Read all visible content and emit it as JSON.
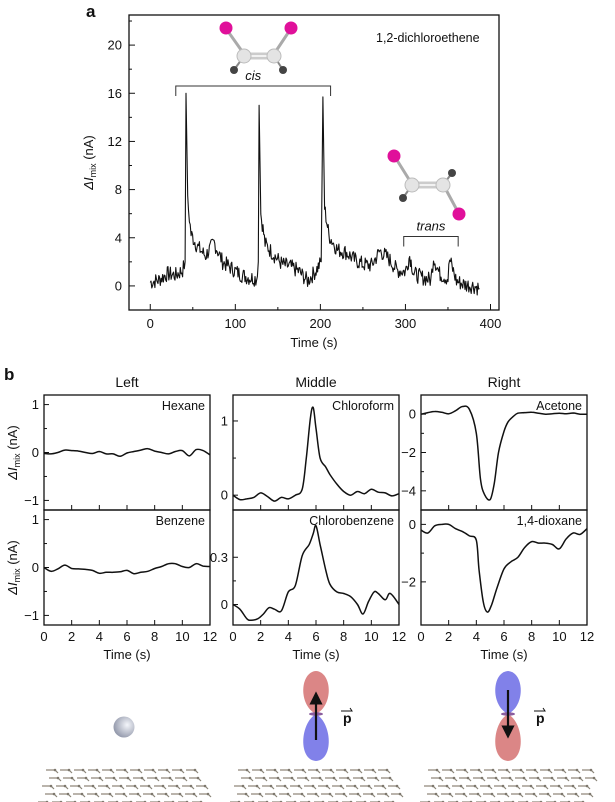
{
  "figure": {
    "panel_a_label": "a",
    "panel_b_label": "b"
  },
  "chart_data": [
    {
      "id": "panel-a",
      "type": "line",
      "title": "",
      "annotation": "1,2-dichloroethene",
      "xlabel": "Time (s)",
      "ylabel_prefix": "ΔI",
      "ylabel_sub": "mix",
      "ylabel_unit": " (nA)",
      "xlim": [
        -25,
        410
      ],
      "ylim": [
        -2,
        22.5
      ],
      "xticks": [
        0,
        100,
        200,
        300,
        400
      ],
      "xtick_labels": [
        "0",
        "100",
        "200",
        "300",
        "400"
      ],
      "yticks": [
        0,
        4,
        8,
        12,
        16,
        20
      ],
      "ytick_labels": [
        "0",
        "4",
        "8",
        "12",
        "16",
        "20"
      ],
      "grid": false,
      "brackets": [
        {
          "label": "cis",
          "x_start": 30,
          "x_end": 212,
          "y": 16.6
        },
        {
          "label": "trans",
          "x_start": 298,
          "x_end": 362,
          "y": 4.1
        }
      ],
      "molecule_labels": [
        "cis-1,2-dichloroethene",
        "trans-1,2-dichloroethene"
      ],
      "spikes": [
        {
          "x": 42,
          "peak": 16.0
        },
        {
          "x": 128,
          "peak": 15.0
        },
        {
          "x": 203,
          "peak": 15.7
        }
      ],
      "series": [
        {
          "name": "ΔImix",
          "x": [
            0,
            10,
            20,
            30,
            38,
            41,
            42,
            44,
            48,
            55,
            65,
            75,
            85,
            95,
            105,
            115,
            125,
            127,
            128,
            130,
            135,
            145,
            155,
            165,
            175,
            185,
            195,
            201,
            203,
            205,
            210,
            220,
            230,
            240,
            250,
            260,
            270,
            280,
            290,
            300,
            305,
            310,
            320,
            330,
            333,
            340,
            350,
            352,
            360,
            370,
            380,
            387
          ],
          "y": [
            0.3,
            0.5,
            1.0,
            0.9,
            1.3,
            2.0,
            16.0,
            7.0,
            4.3,
            3.3,
            2.5,
            3.6,
            2.0,
            1.5,
            1.0,
            0.7,
            0.6,
            2.0,
            15.0,
            6.0,
            3.5,
            2.6,
            1.8,
            1.6,
            1.2,
            0.4,
            1.3,
            2.0,
            15.7,
            6.5,
            4.2,
            3.0,
            2.8,
            2.2,
            1.8,
            1.7,
            2.9,
            2.3,
            1.3,
            1.2,
            2.5,
            1.0,
            0.7,
            0.5,
            2.4,
            1.0,
            0.6,
            2.2,
            0.4,
            0.1,
            0.0,
            -0.2
          ]
        }
      ]
    },
    {
      "id": "panel-b",
      "type": "line",
      "columns": [
        "Left",
        "Middle",
        "Right"
      ],
      "xlabel": "Time (s)",
      "ylabel_prefix": "ΔI",
      "ylabel_sub": "mix",
      "ylabel_unit": " (nA)",
      "xlim": [
        0,
        12
      ],
      "xticks": [
        0,
        2,
        4,
        6,
        8,
        10,
        12
      ],
      "xtick_labels": [
        "0",
        "2",
        "4",
        "6",
        "8",
        "10",
        "12"
      ],
      "grid": false,
      "subplots": [
        {
          "name": "Hexane",
          "row": 0,
          "col": 0,
          "ylim": [
            -1.2,
            1.2
          ],
          "yticks": [
            -1,
            0,
            1
          ],
          "ytick_labels": [
            "−1",
            "0",
            "1"
          ],
          "x": [
            0,
            0.5,
            1,
            1.5,
            2,
            2.5,
            3,
            3.5,
            4,
            4.5,
            5,
            5.5,
            6,
            6.5,
            7,
            7.5,
            8,
            8.5,
            9,
            9.5,
            10,
            10.5,
            11,
            11.5,
            12
          ],
          "y": [
            -0.02,
            -0.03,
            0.0,
            0.05,
            0.04,
            0.03,
            0.0,
            -0.02,
            0.02,
            -0.03,
            -0.03,
            -0.08,
            -0.01,
            0.02,
            0.05,
            0.08,
            0.03,
            0.0,
            -0.03,
            0.02,
            0.04,
            -0.07,
            0.06,
            0.04,
            -0.05
          ]
        },
        {
          "name": "Benzene",
          "row": 1,
          "col": 0,
          "ylim": [
            -1.2,
            1.2
          ],
          "yticks": [
            -1,
            0,
            1
          ],
          "ytick_labels": [
            "−1",
            "0",
            "1"
          ],
          "x": [
            0,
            0.5,
            1,
            1.5,
            2,
            2.5,
            3,
            3.5,
            4,
            4.5,
            5,
            5.5,
            6,
            6.5,
            7,
            7.5,
            8,
            8.5,
            9,
            9.5,
            10,
            10.5,
            11,
            11.5,
            12
          ],
          "y": [
            0.0,
            -0.08,
            -0.03,
            0.05,
            -0.02,
            -0.03,
            -0.04,
            -0.06,
            -0.12,
            -0.1,
            -0.1,
            -0.09,
            -0.06,
            -0.13,
            -0.1,
            -0.08,
            -0.02,
            0.02,
            0.08,
            0.08,
            0.02,
            0.0,
            0.08,
            0.03,
            0.02
          ]
        },
        {
          "name": "Chloroform",
          "row": 0,
          "col": 1,
          "ylim": [
            -0.2,
            1.35
          ],
          "yticks": [
            0,
            1
          ],
          "ytick_labels": [
            "0",
            "1"
          ],
          "x": [
            0,
            0.5,
            1,
            1.5,
            2,
            2.5,
            3,
            3.5,
            4,
            4.5,
            5,
            5.3,
            5.6,
            5.8,
            6,
            6.3,
            6.7,
            7,
            7.5,
            8,
            8.5,
            9,
            9.5,
            10,
            10.5,
            11,
            11.5,
            12
          ],
          "y": [
            0.0,
            -0.06,
            -0.05,
            -0.03,
            0.03,
            -0.02,
            -0.08,
            -0.03,
            -0.05,
            0.0,
            0.08,
            0.5,
            1.05,
            1.18,
            0.9,
            0.5,
            0.38,
            0.28,
            0.15,
            0.05,
            0.0,
            0.05,
            0.02,
            0.08,
            0.04,
            0.03,
            -0.01,
            0.02
          ]
        },
        {
          "name": "Chlorobenzene",
          "row": 1,
          "col": 1,
          "ylim": [
            -0.13,
            0.6
          ],
          "yticks": [
            0,
            0.3
          ],
          "ytick_labels": [
            "0",
            "0.3"
          ],
          "x": [
            0,
            0.5,
            1,
            1.3,
            1.8,
            2.2,
            2.6,
            3,
            3.5,
            4,
            4.5,
            5,
            5.5,
            5.8,
            6,
            6.3,
            6.7,
            7,
            7.5,
            8,
            8.5,
            9,
            9.4,
            9.8,
            10.2,
            10.5,
            11,
            11.3,
            11.6,
            12
          ],
          "y": [
            0.0,
            -0.03,
            -0.09,
            -0.1,
            -0.09,
            -0.06,
            -0.02,
            -0.03,
            -0.04,
            0.08,
            0.12,
            0.31,
            0.38,
            0.45,
            0.5,
            0.38,
            0.22,
            0.13,
            0.08,
            0.07,
            0.05,
            0.0,
            -0.06,
            0.02,
            0.08,
            0.07,
            0.03,
            0.07,
            0.05,
            0.0
          ]
        },
        {
          "name": "Acetone",
          "row": 0,
          "col": 2,
          "ylim": [
            -5.0,
            1.0
          ],
          "yticks": [
            -4,
            -2,
            0
          ],
          "ytick_labels": [
            "−4",
            "−2",
            "0"
          ],
          "x": [
            0,
            0.5,
            1,
            1.5,
            2,
            2.5,
            3,
            3.5,
            4,
            4.3,
            4.6,
            5,
            5.3,
            5.6,
            6,
            6.3,
            6.7,
            7,
            7.5,
            8,
            8.5,
            9,
            9.5,
            10,
            10.5,
            11,
            11.5,
            12
          ],
          "y": [
            0.0,
            0.08,
            0.14,
            0.1,
            0.02,
            0.18,
            0.4,
            0.25,
            -1.0,
            -3.4,
            -4.2,
            -4.45,
            -3.6,
            -2.0,
            -0.9,
            -0.4,
            -0.1,
            0.05,
            0.08,
            0.1,
            0.05,
            0.0,
            0.02,
            0.05,
            0.02,
            0.06,
            0.0,
            0.0
          ]
        },
        {
          "name": "1,4-dioxane",
          "row": 1,
          "col": 2,
          "ylim": [
            -3.5,
            0.5
          ],
          "yticks": [
            -2,
            0
          ],
          "ytick_labels": [
            "−2",
            "0"
          ],
          "x": [
            0,
            0.5,
            1,
            1.5,
            2,
            2.5,
            3,
            3.5,
            4,
            4.2,
            4.5,
            4.8,
            5.1,
            5.5,
            6,
            6.5,
            7,
            7.5,
            8,
            8.5,
            9,
            9.5,
            10,
            10.5,
            11,
            11.5,
            12
          ],
          "y": [
            -0.2,
            -0.3,
            -0.05,
            0.0,
            0.0,
            -0.15,
            -0.25,
            -0.4,
            -0.55,
            -1.6,
            -2.7,
            -3.05,
            -2.8,
            -2.2,
            -1.55,
            -1.3,
            -1.15,
            -0.8,
            -0.6,
            -0.65,
            -0.65,
            -0.7,
            -0.85,
            -0.5,
            -0.3,
            -0.35,
            -0.15
          ]
        }
      ],
      "illustrations": [
        {
          "column": "Left",
          "label": "nonpolar molecule on graphene"
        },
        {
          "column": "Middle",
          "label": "dipole pointing up",
          "vector_label": "p"
        },
        {
          "column": "Right",
          "label": "dipole pointing down",
          "vector_label": "p"
        }
      ]
    }
  ],
  "colors": {
    "line": "#111111",
    "chlorine": "#e0109a",
    "carbon": "#d8d8d8",
    "hydrogen": "#444444",
    "dipole_positive": "#d98080",
    "dipole_negative": "#7a7ae8",
    "graphene": "#9c9588"
  }
}
